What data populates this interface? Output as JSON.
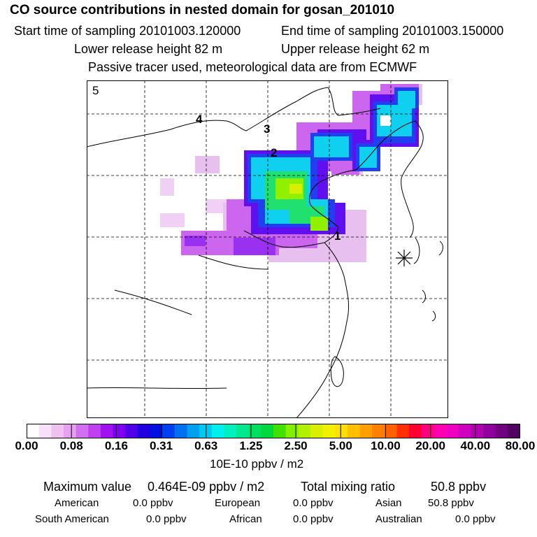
{
  "header": {
    "title": "CO  source contributions in nested domain for gosan_201010",
    "start_label": "Start time of sampling 20101003.120000",
    "end_label": "End time of sampling 20101003.150000",
    "lower_label": "Lower release height   82 m",
    "upper_label": "Upper release height   62 m",
    "note": "Passive tracer used, meteorological data are from ECMWF"
  },
  "map": {
    "panel_number": "5",
    "trajectory_labels": [
      "1",
      "2",
      "3",
      "4"
    ],
    "receptor": "gosan"
  },
  "colorbar": {
    "ticks": [
      "0.00",
      "0.08",
      "0.16",
      "0.31",
      "0.63",
      "1.25",
      "2.50",
      "5.00",
      "10.00",
      "20.00",
      "40.00",
      "80.00"
    ],
    "unit": "10E-10 ppbv / m2",
    "colors": [
      "#ffffff",
      "#f8e0f8",
      "#f0c0f0",
      "#e8a0f0",
      "#d070f0",
      "#c040f0",
      "#a010f0",
      "#8000f0",
      "#5000e8",
      "#2000e0",
      "#0010e0",
      "#0040f0",
      "#0070f0",
      "#00a0f0",
      "#00c8f0",
      "#00f0f0",
      "#00f0c0",
      "#00e890",
      "#00e060",
      "#00d840",
      "#40e000",
      "#80f000",
      "#b0f000",
      "#d8f000",
      "#f0f000",
      "#ffe000",
      "#ffc000",
      "#ffa000",
      "#ff8000",
      "#ff6000",
      "#ff3000",
      "#ff0030",
      "#ff0080",
      "#ff00b0",
      "#f000c0",
      "#d000c0",
      "#b000b0",
      "#9000a0",
      "#700080",
      "#500060"
    ]
  },
  "stats": {
    "max_label": "Maximum value",
    "max_value": "0.464E-09 ppbv / m2",
    "total_label": "Total mixing ratio",
    "total_value": "50.8 ppbv",
    "american_label": "American",
    "american_value": "0.0 ppbv",
    "european_label": "European",
    "european_value": "0.0 ppbv",
    "asian_label": "Asian",
    "asian_value": "50.8 ppbv",
    "south_american_label": "South American",
    "south_american_value": "0.0 ppbv",
    "african_label": "African",
    "african_value": "0.0 ppbv",
    "australian_label": "Australian",
    "australian_value": "0.0 ppbv"
  }
}
